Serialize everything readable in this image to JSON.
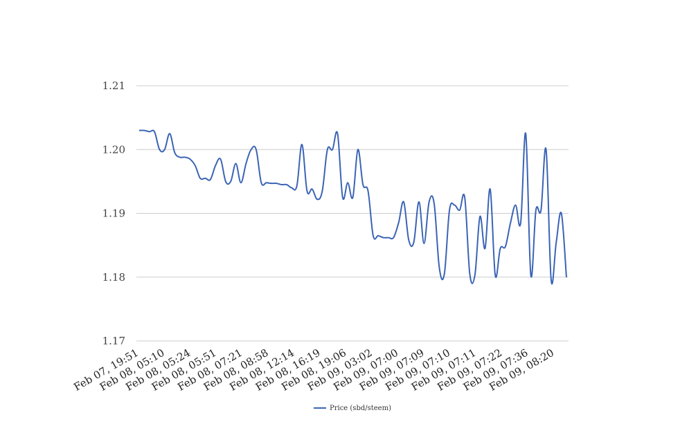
{
  "chart_data": {
    "type": "line",
    "title": "",
    "xlabel": "",
    "ylabel": "",
    "ylim": [
      1.17,
      1.21
    ],
    "yticks": [
      "1.17",
      "1.18",
      "1.19",
      "1.20",
      "1.21"
    ],
    "grid": true,
    "legend_position": "bottom",
    "x_tick_labels": [
      "Feb 07, 19:51",
      "Feb 08, 05:10",
      "Feb 08, 05:24",
      "Feb 08, 05:51",
      "Feb 08, 07:21",
      "Feb 08, 08:58",
      "Feb 08, 12:14",
      "Feb 08, 16:19",
      "Feb 08, 19:06",
      "Feb 09, 03:02",
      "Feb 09, 07:00",
      "Feb 09, 07:09",
      "Feb 09, 07:10",
      "Feb 09, 07:11",
      "Feb 09, 07:22",
      "Feb 09, 07:36",
      "Feb 09, 08:20"
    ],
    "series": [
      {
        "name": "Price (sbd/steem)",
        "color": "#3a63b5",
        "values": [
          1.203,
          1.203,
          1.2028,
          1.2028,
          1.2,
          1.2,
          1.2025,
          1.1995,
          1.1988,
          1.1988,
          1.1985,
          1.1975,
          1.1955,
          1.1955,
          1.1953,
          1.1975,
          1.1985,
          1.195,
          1.195,
          1.1978,
          1.1948,
          1.1978,
          1.2,
          1.2,
          1.1948,
          1.1948,
          1.1947,
          1.1947,
          1.1945,
          1.1945,
          1.194,
          1.1943,
          1.2008,
          1.1935,
          1.1938,
          1.1922,
          1.1935,
          1.2,
          1.2,
          1.2025,
          1.1925,
          1.1948,
          1.1925,
          1.2,
          1.1945,
          1.1935,
          1.1865,
          1.1865,
          1.1862,
          1.1862,
          1.1862,
          1.1885,
          1.1918,
          1.1858,
          1.1855,
          1.1918,
          1.1853,
          1.1918,
          1.1915,
          1.1815,
          1.1805,
          1.1905,
          1.1913,
          1.1905,
          1.1925,
          1.1805,
          1.1803,
          1.1895,
          1.1845,
          1.1938,
          1.1803,
          1.1845,
          1.1848,
          1.1885,
          1.1913,
          1.1885,
          1.2025,
          1.1803,
          1.1905,
          1.1905,
          1.2,
          1.1795,
          1.1855,
          1.19,
          1.18
        ]
      }
    ]
  }
}
